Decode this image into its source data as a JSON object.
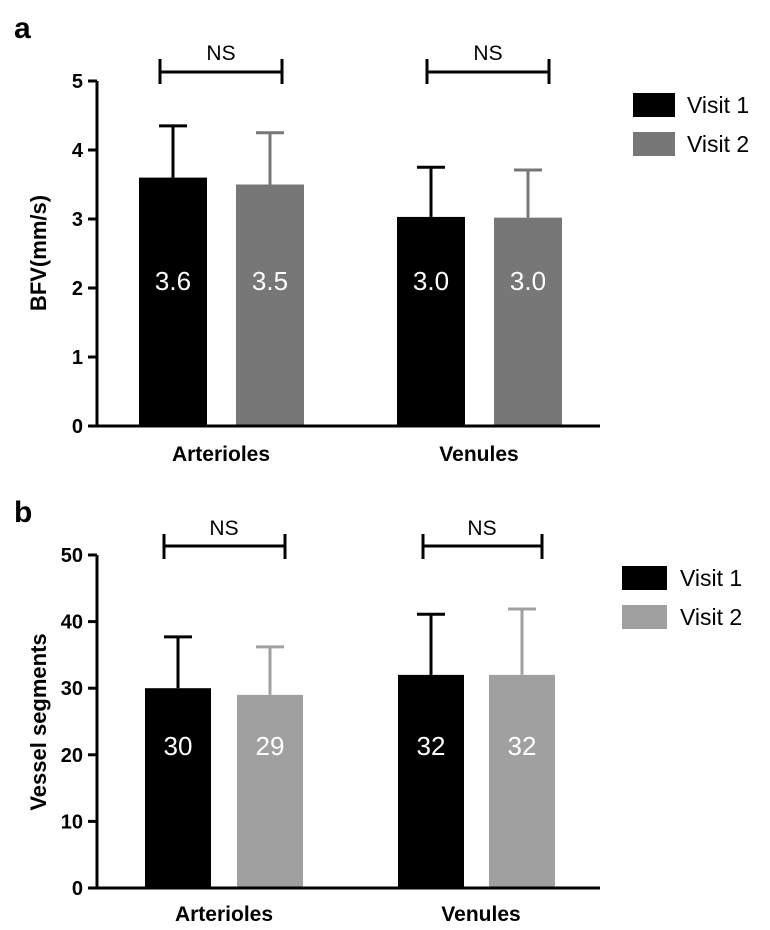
{
  "chart_data": [
    {
      "type": "bar",
      "panel": "a",
      "ylabel": "BFV(mm/s)",
      "categories": [
        "Arterioles",
        "Venules"
      ],
      "ylim": [
        0,
        5
      ],
      "yticks": [
        "0",
        "1",
        "2",
        "3",
        "4",
        "5"
      ],
      "series": [
        {
          "name": "Visit 1",
          "color": "#000000",
          "values": [
            3.6,
            3.03
          ],
          "labels": [
            "3.6",
            "3.0"
          ],
          "errors": [
            0.75,
            0.72
          ]
        },
        {
          "name": "Visit 2",
          "color": "#777777",
          "values": [
            3.5,
            3.02
          ],
          "labels": [
            "3.5",
            "3.0"
          ],
          "errors": [
            0.75,
            0.69
          ]
        }
      ],
      "significance": [
        "NS",
        "NS"
      ],
      "legend": "top-right",
      "grid": false
    },
    {
      "type": "bar",
      "panel": "b",
      "ylabel": "Vessel segments",
      "categories": [
        "Arterioles",
        "Venules"
      ],
      "ylim": [
        0,
        50
      ],
      "yticks": [
        "0",
        "10",
        "20",
        "30",
        "40",
        "50"
      ],
      "series": [
        {
          "name": "Visit 1",
          "color": "#000000",
          "values": [
            30,
            32
          ],
          "labels": [
            "30",
            "32"
          ],
          "errors": [
            7.7,
            9.1
          ]
        },
        {
          "name": "Visit 2",
          "color": "#a0a0a0",
          "values": [
            29,
            32
          ],
          "labels": [
            "29",
            "32"
          ],
          "errors": [
            7.2,
            9.9
          ]
        }
      ],
      "significance": [
        "NS",
        "NS"
      ],
      "legend": "top-right",
      "grid": false
    }
  ]
}
